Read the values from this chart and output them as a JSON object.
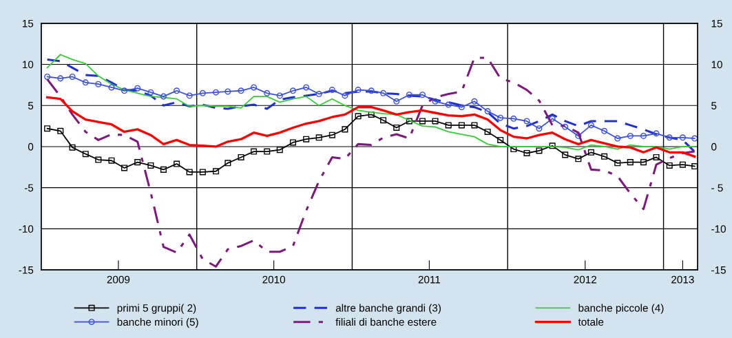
{
  "chart_data": {
    "type": "line",
    "x": [
      "2009-01-15",
      "2009-02-15",
      "2009-03-15",
      "2009-04-15",
      "2009-05-15",
      "2009-06-15",
      "2009-07-15",
      "2009-08-15",
      "2009-09-15",
      "2009-10-15",
      "2009-11-15",
      "2009-12-15",
      "2010-01-15",
      "2010-02-15",
      "2010-03-15",
      "2010-04-15",
      "2010-05-15",
      "2010-06-15",
      "2010-07-15",
      "2010-08-15",
      "2010-09-15",
      "2010-10-15",
      "2010-11-15",
      "2010-12-15",
      "2011-01-15",
      "2011-02-15",
      "2011-03-15",
      "2011-04-15",
      "2011-05-15",
      "2011-06-15",
      "2011-07-15",
      "2011-08-15",
      "2011-09-15",
      "2011-10-15",
      "2011-11-15",
      "2011-12-15",
      "2012-01-15",
      "2012-02-15",
      "2012-03-15",
      "2012-04-15",
      "2012-05-15",
      "2012-06-15",
      "2012-07-15",
      "2012-08-15",
      "2012-09-15",
      "2012-10-15",
      "2012-11-15",
      "2012-12-15",
      "2013-01-15",
      "2013-02-15",
      "2013-03-15"
    ],
    "series": [
      {
        "name": "primi 5 gruppi( 2)",
        "color": "#000000",
        "marker": "square",
        "line_style": "solid",
        "values": [
          2.2,
          1.9,
          -0.1,
          -0.9,
          -1.6,
          -1.7,
          -2.6,
          -1.9,
          -2.3,
          -2.8,
          -2.1,
          -3.1,
          -3.1,
          -3.0,
          -2.0,
          -1.3,
          -0.6,
          -0.6,
          -0.4,
          0.5,
          0.9,
          1.1,
          1.4,
          2.1,
          3.7,
          3.9,
          3.2,
          2.3,
          3.1,
          3.1,
          3.1,
          2.6,
          2.6,
          2.6,
          1.8,
          0.8,
          -0.3,
          -0.8,
          -0.5,
          0.1,
          -1.0,
          -1.5,
          -0.7,
          -1.2,
          -2.0,
          -1.9,
          -1.9,
          -1.3,
          -2.3,
          -2.2,
          -2.4
        ]
      },
      {
        "name": "altre banche grandi (3)",
        "color": "#1f2fd0",
        "marker": "none",
        "line_style": "dashed",
        "values": [
          10.6,
          10.4,
          9.6,
          8.7,
          8.6,
          7.8,
          6.9,
          6.8,
          6.2,
          5.0,
          5.4,
          4.9,
          5.1,
          4.7,
          4.6,
          4.9,
          5.1,
          4.6,
          5.7,
          6.0,
          6.2,
          6.4,
          6.8,
          6.5,
          6.7,
          6.7,
          6.5,
          6.4,
          6.2,
          6.1,
          5.7,
          5.4,
          5.0,
          4.8,
          4.2,
          2.8,
          2.2,
          2.5,
          3.1,
          3.9,
          3.1,
          2.5,
          3.1,
          3.1,
          3.1,
          2.6,
          2.1,
          1.5,
          1.1,
          0.8,
          -0.6
        ]
      },
      {
        "name": "banche piccole (4)",
        "color": "#33cc33",
        "marker": "none",
        "line_style": "solid",
        "values": [
          9.6,
          11.2,
          10.6,
          10.1,
          8.6,
          7.6,
          6.9,
          6.5,
          6.1,
          6.0,
          5.8,
          4.9,
          5.0,
          4.9,
          4.9,
          4.7,
          6.1,
          6.1,
          5.4,
          5.8,
          6.1,
          5.0,
          5.8,
          5.0,
          4.4,
          4.2,
          4.0,
          3.9,
          3.2,
          2.5,
          2.4,
          1.8,
          1.5,
          1.2,
          0.3,
          0.0,
          0.0,
          0.0,
          0.0,
          0.0,
          -0.1,
          -0.4,
          0.2,
          0.0,
          -0.3,
          0.2,
          0.0,
          0.0,
          -0.3,
          0.0,
          0.0
        ]
      },
      {
        "name": "banche minori (5)",
        "color": "#3a4fe0",
        "marker": "circle",
        "line_style": "solid",
        "values": [
          8.5,
          8.3,
          8.5,
          7.8,
          7.6,
          7.2,
          6.8,
          7.1,
          6.6,
          6.1,
          6.8,
          6.2,
          6.5,
          6.6,
          6.7,
          6.8,
          7.2,
          6.5,
          6.2,
          6.8,
          7.2,
          6.4,
          6.9,
          6.2,
          6.9,
          6.8,
          6.5,
          5.5,
          6.3,
          6.3,
          5.5,
          5.1,
          4.8,
          5.5,
          4.3,
          3.5,
          3.4,
          3.1,
          2.2,
          3.4,
          2.4,
          1.3,
          2.6,
          1.9,
          1.0,
          1.3,
          1.3,
          1.6,
          1.1,
          1.1,
          1.0
        ]
      },
      {
        "name": "filiali di banche estere",
        "color": "#7b1a7b",
        "marker": "none",
        "line_style": "dashdot",
        "values": [
          8.2,
          6.1,
          3.9,
          1.8,
          0.8,
          1.5,
          1.4,
          0.6,
          -5.6,
          -12.2,
          -12.9,
          -10.7,
          -13.7,
          -14.6,
          -12.5,
          -12.1,
          -11.4,
          -12.8,
          -12.8,
          -12.1,
          -7.8,
          -4.2,
          -1.3,
          -1.5,
          0.3,
          0.2,
          1.1,
          1.5,
          1.0,
          5.0,
          6.0,
          6.4,
          6.7,
          10.8,
          10.8,
          8.3,
          7.8,
          6.9,
          5.6,
          2.6,
          2.5,
          1.7,
          -2.8,
          -2.9,
          -3.6,
          -5.7,
          -7.6,
          -2.2,
          -1.4,
          -0.8,
          -0.6
        ]
      },
      {
        "name": "totale",
        "color": "#ff0000",
        "marker": "none",
        "line_style": "solid",
        "values": [
          6.0,
          5.8,
          4.3,
          3.3,
          3.0,
          2.7,
          1.8,
          2.1,
          1.4,
          0.3,
          0.8,
          0.2,
          0.1,
          0.0,
          0.6,
          0.9,
          1.7,
          1.3,
          1.7,
          2.3,
          2.8,
          3.1,
          3.6,
          3.9,
          4.8,
          4.8,
          4.4,
          3.9,
          4.2,
          4.4,
          4.1,
          3.8,
          3.7,
          3.9,
          3.3,
          2.0,
          1.2,
          1.0,
          1.4,
          1.7,
          0.9,
          0.3,
          0.8,
          0.4,
          0.0,
          -0.1,
          -0.7,
          -0.1,
          -0.7,
          -0.7,
          -1.2
        ]
      }
    ],
    "xlim": [
      "2009-01-01",
      "2013-03-22"
    ],
    "xticks": [
      {
        "value": "2009-07-01",
        "label": "2009"
      },
      {
        "value": "2010-07-01",
        "label": "2010"
      },
      {
        "value": "2011-07-01",
        "label": "2011"
      },
      {
        "value": "2012-07-01",
        "label": "2012"
      },
      {
        "value": "2013-02-15",
        "label": "2013"
      }
    ],
    "ylim": [
      -15,
      15
    ],
    "yticks": [
      -15,
      -10,
      -5,
      0,
      5,
      10,
      15
    ],
    "y2lim": [
      -15,
      15
    ],
    "y2ticks": [
      {
        "value": -15,
        "label": "-15"
      },
      {
        "value": -10,
        "label": "-10"
      },
      {
        "value": -5,
        "label": "- 5"
      },
      {
        "value": 0,
        "label": "0"
      },
      {
        "value": 5,
        "label": "5"
      },
      {
        "value": 10,
        "label": "10"
      },
      {
        "value": 15,
        "label": "15"
      }
    ],
    "ref_lines": [
      {
        "axis": "x",
        "value": "2010-01-01",
        "color": "#000000"
      },
      {
        "axis": "x",
        "value": "2011-01-01",
        "color": "#000000"
      },
      {
        "axis": "x",
        "value": "2012-01-01",
        "color": "#000000"
      },
      {
        "axis": "x",
        "value": "2013-01-01",
        "color": "#000000"
      }
    ],
    "grid": "y",
    "legend": "bottom"
  }
}
